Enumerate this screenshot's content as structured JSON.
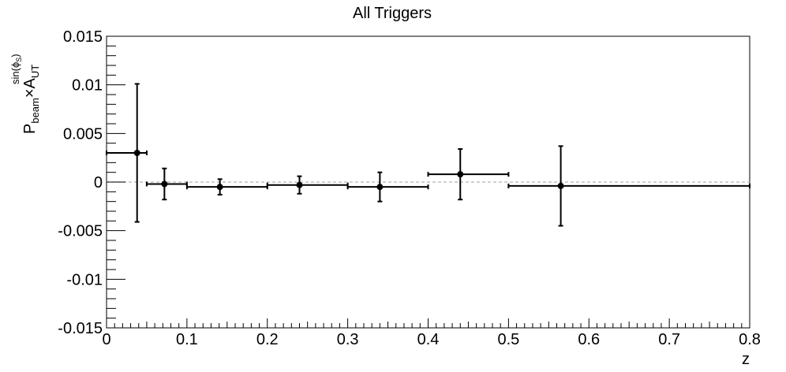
{
  "chart_data": {
    "type": "scatter",
    "title": "All Triggers",
    "xlabel": "z",
    "ylabel": {
      "main": "P",
      "main_sub": "beam",
      "times": "×A",
      "a_sub": "UT",
      "sup": "sin(ϕ",
      "sup_sub": "S",
      "sup_close": ")"
    },
    "xlim": [
      0,
      0.8
    ],
    "ylim": [
      -0.015,
      0.015
    ],
    "x_ticks": [
      0,
      0.1,
      0.2,
      0.3,
      0.4,
      0.5,
      0.6,
      0.7,
      0.8
    ],
    "x_tick_labels": [
      "0",
      "0.1",
      "0.2",
      "0.3",
      "0.4",
      "0.5",
      "0.6",
      "0.7",
      "0.8"
    ],
    "y_ticks": [
      -0.015,
      -0.01,
      -0.005,
      0,
      0.005,
      0.01,
      0.015
    ],
    "y_tick_labels": [
      "-0.015",
      "-0.01",
      "-0.005",
      "0",
      "0.005",
      "0.01",
      "0.015"
    ],
    "reference_line": 0,
    "grid": false,
    "points": [
      {
        "x": 0.038,
        "y": 0.003,
        "xlo": 0.0,
        "xhi": 0.05,
        "yerr": 0.0071
      },
      {
        "x": 0.072,
        "y": -0.0002,
        "xlo": 0.05,
        "xhi": 0.1,
        "yerr": 0.0016
      },
      {
        "x": 0.141,
        "y": -0.0005,
        "xlo": 0.1,
        "xhi": 0.2,
        "yerr": 0.0008
      },
      {
        "x": 0.24,
        "y": -0.0003,
        "xlo": 0.2,
        "xhi": 0.3,
        "yerr": 0.0009
      },
      {
        "x": 0.34,
        "y": -0.0005,
        "xlo": 0.3,
        "xhi": 0.4,
        "yerr": 0.0015
      },
      {
        "x": 0.44,
        "y": 0.0008,
        "xlo": 0.4,
        "xhi": 0.5,
        "yerr": 0.0026
      },
      {
        "x": 0.565,
        "y": -0.0004,
        "xlo": 0.5,
        "xhi": 0.8,
        "yerr": 0.0041
      }
    ]
  }
}
